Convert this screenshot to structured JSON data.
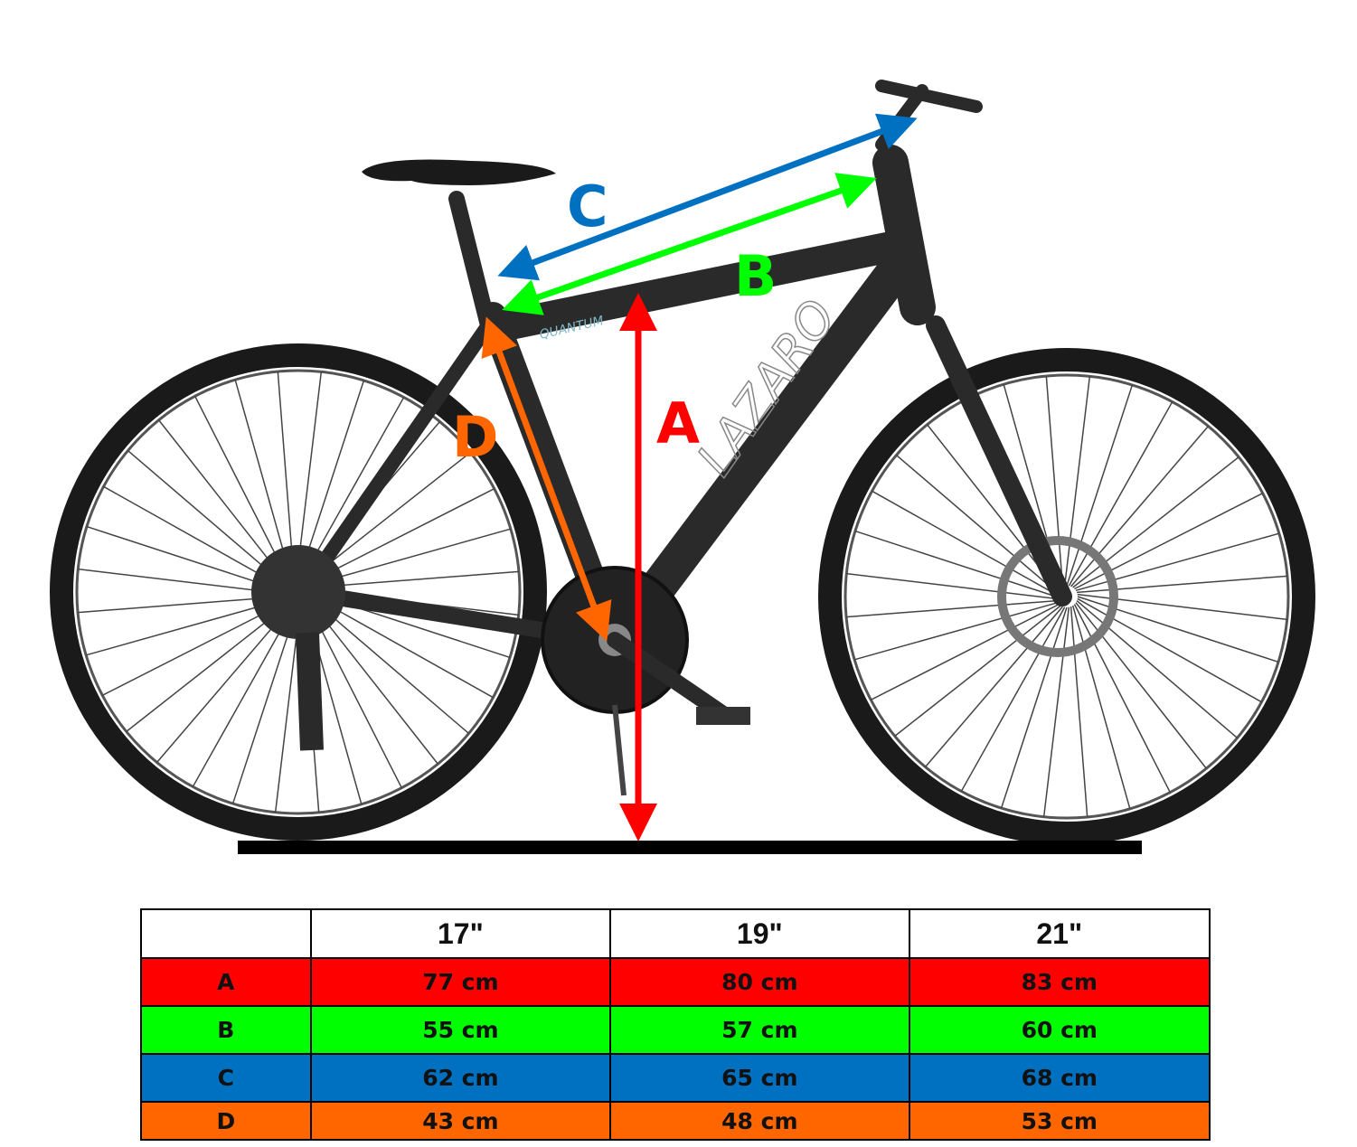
{
  "brand": {
    "frame_logo": "LAZARO",
    "model": "QUANTUM"
  },
  "labels": {
    "A": "A",
    "B": "B",
    "C": "C",
    "D": "D"
  },
  "colors": {
    "A": "#ff0000",
    "B": "#00ff00",
    "C": "#0070c0",
    "D": "#ff6600"
  },
  "table": {
    "headers": [
      "",
      "17\"",
      "19\"",
      "21\""
    ],
    "rows": [
      {
        "key": "A",
        "values": [
          "77 cm",
          "80 cm",
          "83 cm"
        ]
      },
      {
        "key": "B",
        "values": [
          "55 cm",
          "57 cm",
          "60 cm"
        ]
      },
      {
        "key": "C",
        "values": [
          "62 cm",
          "65 cm",
          "68 cm"
        ]
      },
      {
        "key": "D",
        "values": [
          "43 cm",
          "48 cm",
          "53 cm"
        ]
      }
    ]
  }
}
